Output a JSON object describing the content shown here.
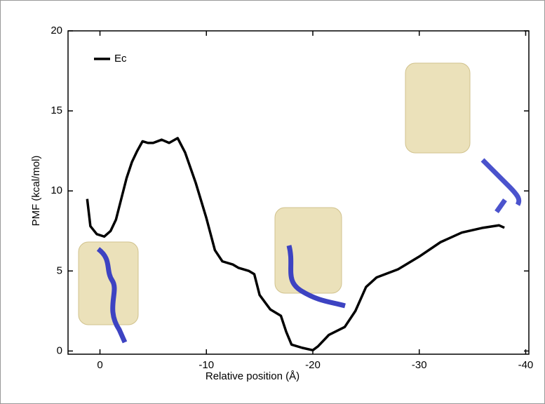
{
  "chart_data": {
    "type": "line",
    "x_label": "Relative position (Å)",
    "y_label": "PMF (kcal/mol)",
    "x": [
      1.2,
      0.9,
      0.3,
      -0.4,
      -1,
      -1.5,
      -2,
      -2.5,
      -3,
      -3.5,
      -4,
      -4.5,
      -5,
      -5.8,
      -6.5,
      -7.3,
      -8,
      -9,
      -10,
      -10.8,
      -11.5,
      -12.5,
      -13,
      -14,
      -14.5,
      -15,
      -16,
      -17,
      -17.5,
      -18,
      -19,
      -20,
      -20.5,
      -21.5,
      -23,
      -24,
      -25,
      -26,
      -28,
      -30,
      -32,
      -34,
      -36,
      -37.5,
      -38
    ],
    "series": [
      {
        "name": "Ec",
        "color": "#000000",
        "values": [
          9.5,
          7.8,
          7.3,
          7.15,
          7.5,
          8.2,
          9.5,
          10.8,
          11.8,
          12.5,
          13.1,
          13.0,
          13.0,
          13.2,
          13.0,
          13.3,
          12.4,
          10.5,
          8.3,
          6.3,
          5.6,
          5.4,
          5.2,
          5.0,
          4.8,
          3.5,
          2.6,
          2.2,
          1.2,
          0.4,
          0.2,
          0.05,
          0.3,
          1.0,
          1.5,
          2.5,
          4.0,
          4.6,
          5.1,
          5.9,
          6.8,
          7.4,
          7.7,
          7.85,
          7.7
        ]
      }
    ],
    "xlim": [
      3,
      -40.3
    ],
    "xticks": [
      0,
      -10,
      -20,
      -30,
      -40
    ],
    "ylim": [
      -0.2,
      20
    ],
    "yticks": [
      0,
      5,
      10,
      15,
      20
    ],
    "legend": "upper left"
  }
}
